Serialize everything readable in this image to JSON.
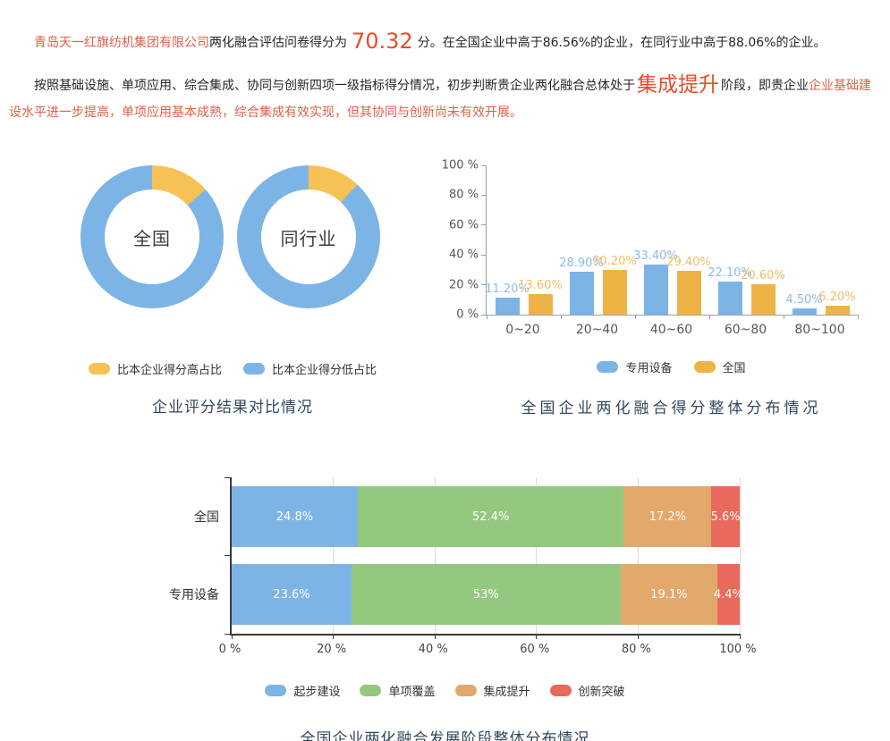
{
  "intro": {
    "company": "青岛天一红旗纺机集团有限公司",
    "score_label": "两化融合评估问卷得分为",
    "score": "70.32",
    "score_rest": "分。在全国企业中高于86.56%的企业，在同行业中高于88.06%的企业。"
  },
  "analysis": {
    "part1_black": "按照基础设施、单项应用、综合集成、协同与创新四项一级指标得分情况，初步判断贵企业两化融合总体处于",
    "stage": "集成提升",
    "part2_black": "阶段，即贵企业",
    "part3_red": "企业基础建设水平进一步提高，单项应用基本成熟，综合集成有效实现，但其协同与创新尚未有效开展。"
  },
  "colors": {
    "blue": "#7db4e6",
    "gold": "#f6c255",
    "amber": "#edb445",
    "green": "#95c87f",
    "orange": "#e3a86b",
    "red": "#e96a5c",
    "title": "#33475c",
    "bright_red": "#ea4c2a",
    "red_text": "#df604a"
  },
  "chart_data": [
    {
      "type": "pie",
      "subtype": "donut-pair",
      "title": "企业评分结果对比情况",
      "donuts": [
        {
          "label": "全国",
          "slices": [
            {
              "name": "比本企业得分高占比",
              "value": 13.44
            },
            {
              "name": "比本企业得分低占比",
              "value": 86.56
            }
          ]
        },
        {
          "label": "同行业",
          "slices": [
            {
              "name": "比本企业得分高占比",
              "value": 11.94
            },
            {
              "name": "比本企业得分低占比",
              "value": 88.06
            }
          ]
        }
      ],
      "legend": [
        {
          "label": "比本企业得分高占比",
          "color": "#f6c255"
        },
        {
          "label": "比本企业得分低占比",
          "color": "#7db4e6"
        }
      ],
      "legend_position": "bottom"
    },
    {
      "type": "bar",
      "title": "全国企业两化融合得分整体分布情况",
      "categories": [
        "0~20",
        "20~40",
        "40~60",
        "60~80",
        "80~100"
      ],
      "series": [
        {
          "name": "专用设备",
          "color": "#7db4e6",
          "label_color": "#8abce9",
          "values": [
            11.2,
            28.9,
            33.4,
            22.1,
            4.5
          ],
          "labels": [
            "11.20%",
            "28.90%",
            "33.40%",
            "22.10%",
            "4.50%"
          ]
        },
        {
          "name": "全国",
          "color": "#edb445",
          "label_color": "#f2bd62",
          "values": [
            13.6,
            30.2,
            29.4,
            20.6,
            6.2
          ],
          "labels": [
            "13.60%",
            "30.20%",
            "29.40%",
            "20.60%",
            "6.20%"
          ]
        }
      ],
      "ylim": [
        0,
        100
      ],
      "yticks": [
        "0 %",
        "20 %",
        "40 %",
        "60 %",
        "80 %",
        "100 %"
      ],
      "grid": false,
      "legend_position": "bottom"
    },
    {
      "type": "bar",
      "subtype": "horizontal-stacked",
      "title": "全国企业两化融合发展阶段整体分布情况",
      "categories": [
        "全国",
        "专用设备"
      ],
      "series": [
        {
          "name": "起步建设",
          "color": "#7db4e6",
          "values": [
            24.8,
            23.6
          ],
          "labels": [
            "24.8%",
            "23.6%"
          ]
        },
        {
          "name": "单项覆盖",
          "color": "#95c87f",
          "values": [
            52.4,
            53.0
          ],
          "labels": [
            "52.4%",
            "53%"
          ]
        },
        {
          "name": "集成提升",
          "color": "#e3a86b",
          "values": [
            17.2,
            19.1
          ],
          "labels": [
            "17.2%",
            "19.1%"
          ]
        },
        {
          "name": "创新突破",
          "color": "#e96a5c",
          "values": [
            5.6,
            4.4
          ],
          "labels": [
            "5.6%",
            "4.4%"
          ]
        }
      ],
      "xlim": [
        0,
        100
      ],
      "xticks": [
        "0 %",
        "20 %",
        "40 %",
        "60 %",
        "80 %",
        "100 %"
      ],
      "grid": true,
      "legend_position": "bottom"
    }
  ]
}
